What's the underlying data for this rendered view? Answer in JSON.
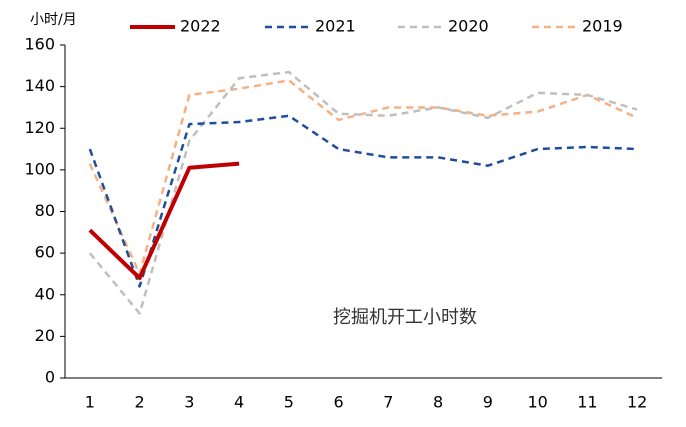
{
  "chart_data": {
    "type": "line",
    "y_label": "小时/月",
    "annotation": "挖掘机开工小时数",
    "categories": [
      "1",
      "2",
      "3",
      "4",
      "5",
      "6",
      "7",
      "8",
      "9",
      "10",
      "11",
      "12"
    ],
    "series": [
      {
        "name": "2022",
        "color": "#c00000",
        "dashed": false,
        "values": [
          71,
          48,
          101,
          103,
          null,
          null,
          null,
          null,
          null,
          null,
          null,
          null
        ]
      },
      {
        "name": "2021",
        "color": "#1f4e9c",
        "dashed": true,
        "values": [
          110,
          44,
          122,
          123,
          126,
          110,
          106,
          106,
          102,
          110,
          111,
          110
        ]
      },
      {
        "name": "2020",
        "color": "#bfbfbf",
        "dashed": true,
        "values": [
          60,
          31,
          114,
          144,
          147,
          127,
          126,
          130,
          125,
          137,
          136,
          129
        ]
      },
      {
        "name": "2019",
        "color": "#f4b183",
        "dashed": true,
        "values": [
          103,
          50,
          136,
          139,
          143,
          124,
          130,
          130,
          126,
          128,
          136,
          125
        ]
      }
    ],
    "ylim": [
      0,
      160
    ],
    "yticks": [
      0,
      20,
      40,
      60,
      80,
      100,
      120,
      140,
      160
    ],
    "grid": false,
    "legend": "top"
  }
}
